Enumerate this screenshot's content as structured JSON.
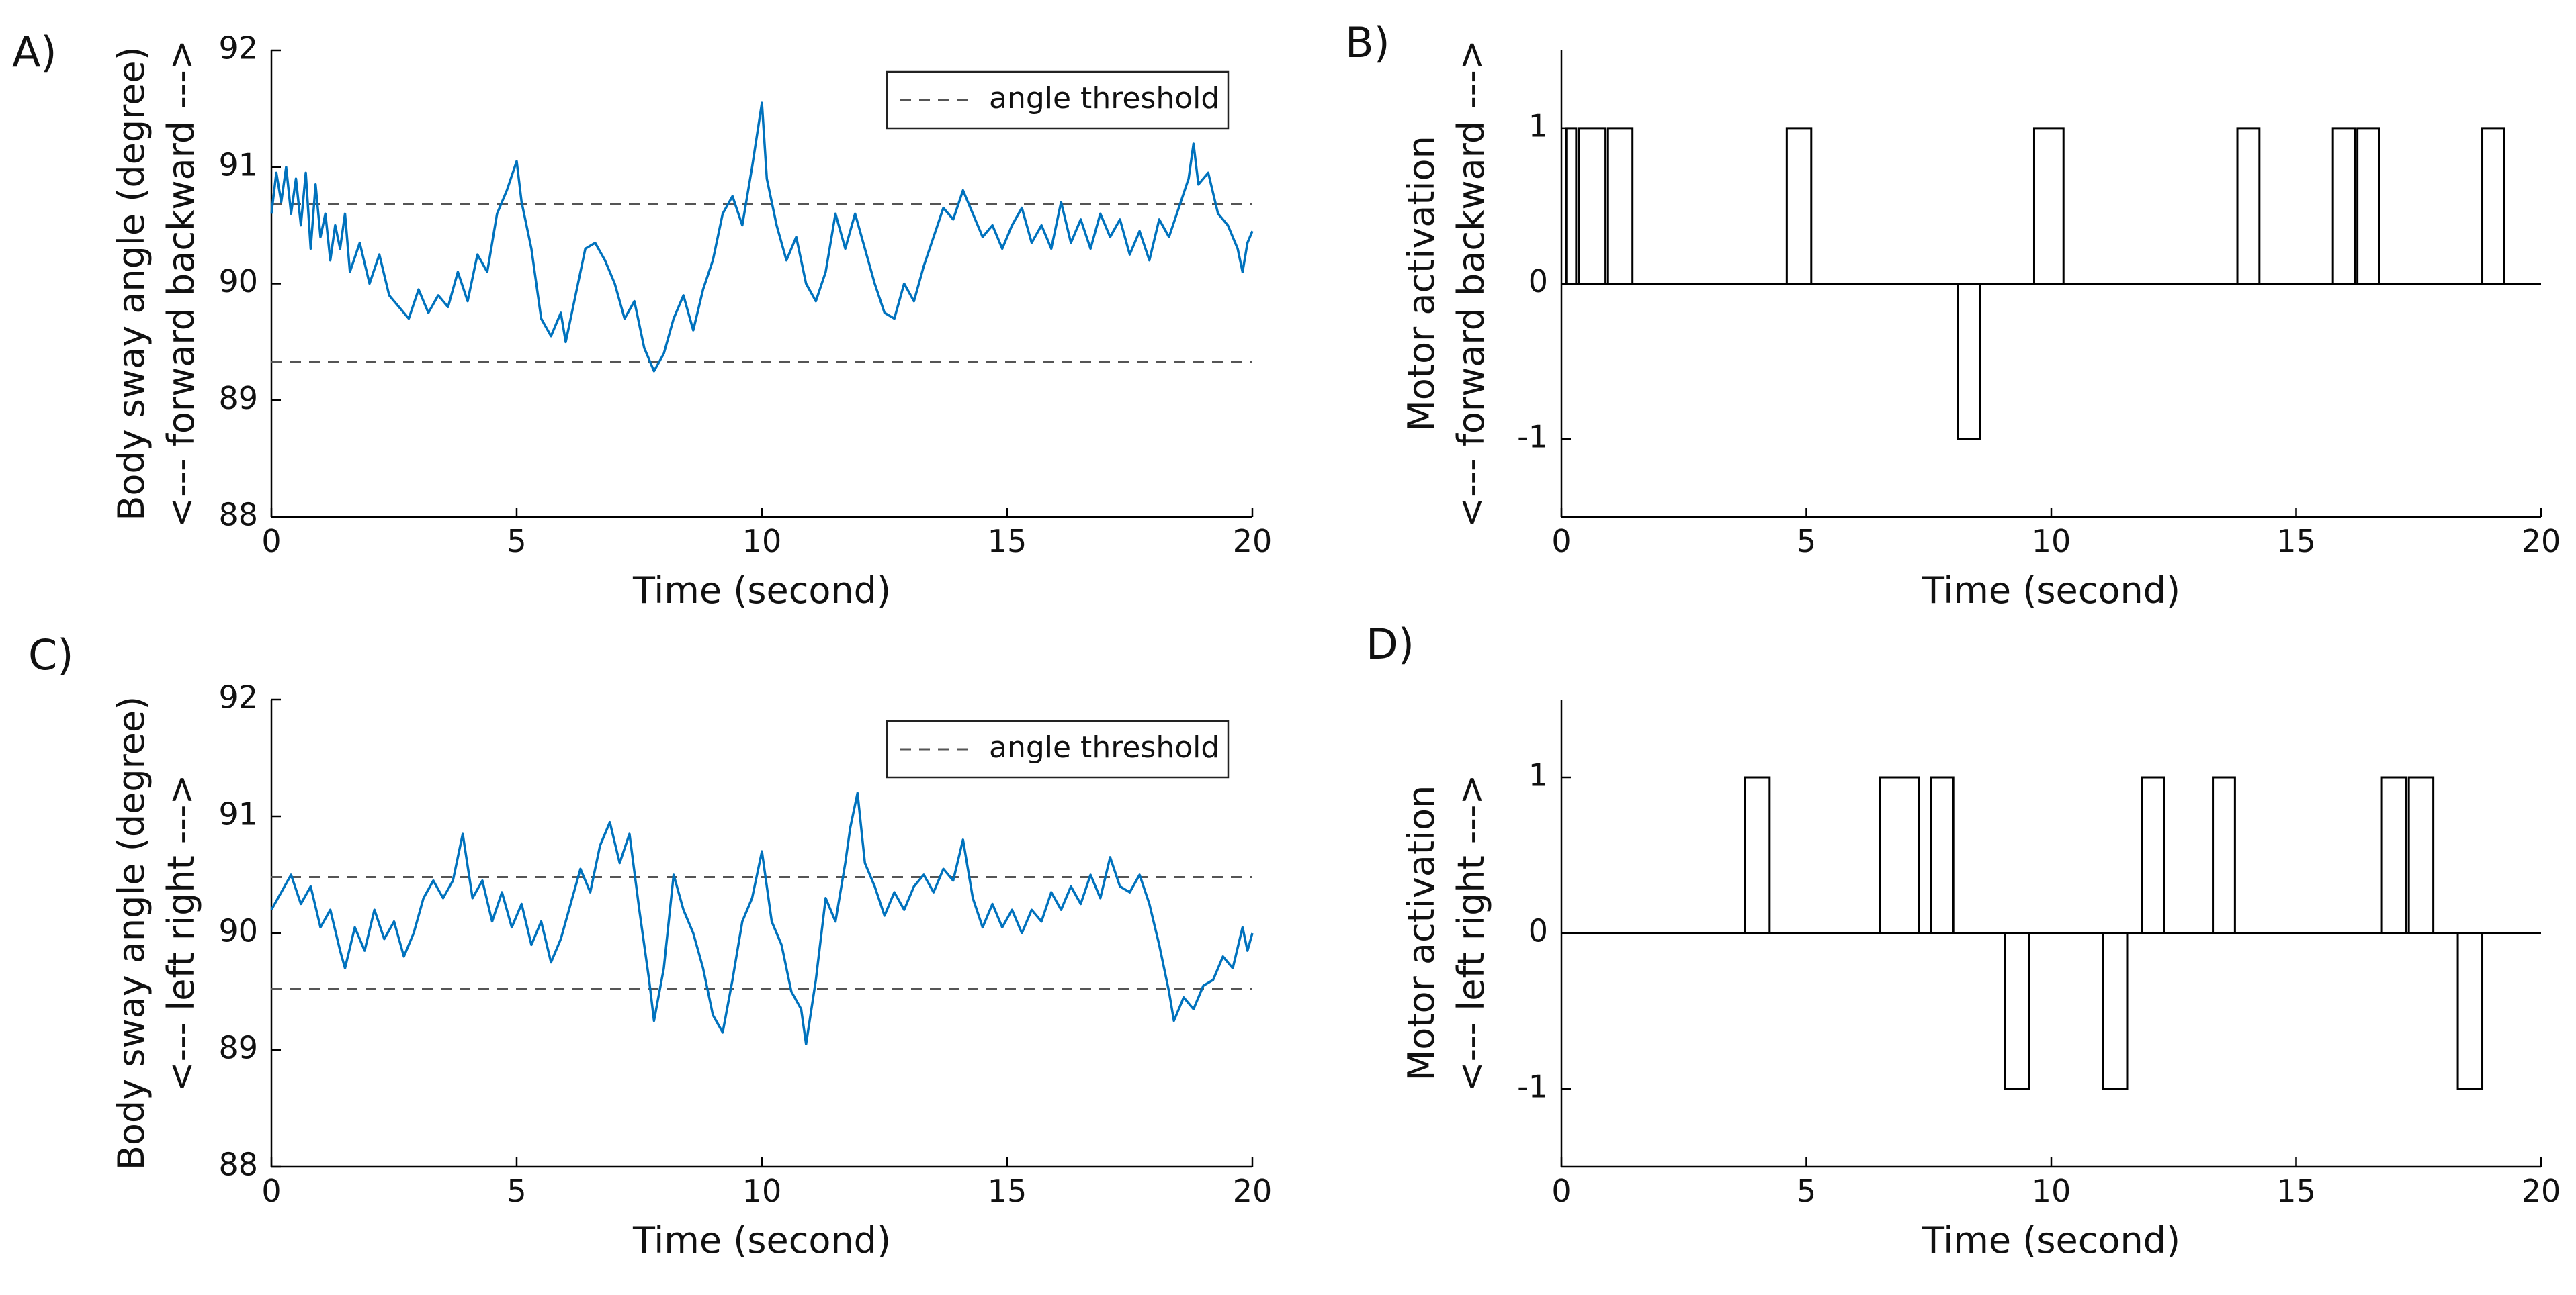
{
  "legend_label": "angle threshold",
  "colors": {
    "signal": "#0072BD",
    "threshold": "#555555",
    "axis": "#000000",
    "activation": "#000000"
  },
  "chart_data": [
    {
      "panel": "A)",
      "type": "line",
      "xlabel": "Time (second)",
      "ylabel_lines": [
        "Body sway angle (degree)",
        "<--- forward      backward --->"
      ],
      "xlim": [
        0,
        20
      ],
      "ylim": [
        88,
        92
      ],
      "xticks": [
        0,
        5,
        10,
        15,
        20
      ],
      "yticks": [
        88,
        89,
        90,
        91,
        92
      ],
      "legend": "angle threshold",
      "legend_position": "top-right",
      "thresholds": [
        90.68,
        89.33
      ],
      "series": [
        {
          "points": [
            [
              0,
              90.6
            ],
            [
              0.1,
              90.95
            ],
            [
              0.2,
              90.7
            ],
            [
              0.3,
              91.0
            ],
            [
              0.4,
              90.6
            ],
            [
              0.5,
              90.9
            ],
            [
              0.6,
              90.5
            ],
            [
              0.7,
              90.95
            ],
            [
              0.8,
              90.3
            ],
            [
              0.9,
              90.85
            ],
            [
              1.0,
              90.4
            ],
            [
              1.1,
              90.6
            ],
            [
              1.2,
              90.2
            ],
            [
              1.3,
              90.5
            ],
            [
              1.4,
              90.3
            ],
            [
              1.5,
              90.6
            ],
            [
              1.6,
              90.1
            ],
            [
              1.8,
              90.35
            ],
            [
              2.0,
              90.0
            ],
            [
              2.2,
              90.25
            ],
            [
              2.4,
              89.9
            ],
            [
              2.6,
              89.8
            ],
            [
              2.8,
              89.7
            ],
            [
              3.0,
              89.95
            ],
            [
              3.2,
              89.75
            ],
            [
              3.4,
              89.9
            ],
            [
              3.6,
              89.8
            ],
            [
              3.8,
              90.1
            ],
            [
              4.0,
              89.85
            ],
            [
              4.2,
              90.25
            ],
            [
              4.4,
              90.1
            ],
            [
              4.6,
              90.6
            ],
            [
              4.8,
              90.8
            ],
            [
              5.0,
              91.05
            ],
            [
              5.1,
              90.7
            ],
            [
              5.3,
              90.3
            ],
            [
              5.5,
              89.7
            ],
            [
              5.7,
              89.55
            ],
            [
              5.9,
              89.75
            ],
            [
              6.0,
              89.5
            ],
            [
              6.2,
              89.9
            ],
            [
              6.4,
              90.3
            ],
            [
              6.6,
              90.35
            ],
            [
              6.8,
              90.2
            ],
            [
              7.0,
              90.0
            ],
            [
              7.2,
              89.7
            ],
            [
              7.4,
              89.85
            ],
            [
              7.6,
              89.45
            ],
            [
              7.8,
              89.25
            ],
            [
              8.0,
              89.4
            ],
            [
              8.2,
              89.7
            ],
            [
              8.4,
              89.9
            ],
            [
              8.6,
              89.6
            ],
            [
              8.8,
              89.95
            ],
            [
              9.0,
              90.2
            ],
            [
              9.2,
              90.6
            ],
            [
              9.4,
              90.75
            ],
            [
              9.6,
              90.5
            ],
            [
              9.8,
              91.0
            ],
            [
              10.0,
              91.55
            ],
            [
              10.1,
              90.9
            ],
            [
              10.3,
              90.5
            ],
            [
              10.5,
              90.2
            ],
            [
              10.7,
              90.4
            ],
            [
              10.9,
              90.0
            ],
            [
              11.1,
              89.85
            ],
            [
              11.3,
              90.1
            ],
            [
              11.5,
              90.6
            ],
            [
              11.7,
              90.3
            ],
            [
              11.9,
              90.6
            ],
            [
              12.1,
              90.3
            ],
            [
              12.3,
              90.0
            ],
            [
              12.5,
              89.75
            ],
            [
              12.7,
              89.7
            ],
            [
              12.9,
              90.0
            ],
            [
              13.1,
              89.85
            ],
            [
              13.3,
              90.15
            ],
            [
              13.5,
              90.4
            ],
            [
              13.7,
              90.65
            ],
            [
              13.9,
              90.55
            ],
            [
              14.1,
              90.8
            ],
            [
              14.3,
              90.6
            ],
            [
              14.5,
              90.4
            ],
            [
              14.7,
              90.5
            ],
            [
              14.9,
              90.3
            ],
            [
              15.1,
              90.5
            ],
            [
              15.3,
              90.65
            ],
            [
              15.5,
              90.35
            ],
            [
              15.7,
              90.5
            ],
            [
              15.9,
              90.3
            ],
            [
              16.1,
              90.7
            ],
            [
              16.3,
              90.35
            ],
            [
              16.5,
              90.55
            ],
            [
              16.7,
              90.3
            ],
            [
              16.9,
              90.6
            ],
            [
              17.1,
              90.4
            ],
            [
              17.3,
              90.55
            ],
            [
              17.5,
              90.25
            ],
            [
              17.7,
              90.45
            ],
            [
              17.9,
              90.2
            ],
            [
              18.1,
              90.55
            ],
            [
              18.3,
              90.4
            ],
            [
              18.5,
              90.65
            ],
            [
              18.7,
              90.9
            ],
            [
              18.8,
              91.2
            ],
            [
              18.9,
              90.85
            ],
            [
              19.1,
              90.95
            ],
            [
              19.3,
              90.6
            ],
            [
              19.5,
              90.5
            ],
            [
              19.7,
              90.3
            ],
            [
              19.8,
              90.1
            ],
            [
              19.9,
              90.35
            ],
            [
              20.0,
              90.45
            ]
          ]
        }
      ]
    },
    {
      "panel": "B)",
      "type": "line",
      "xlabel": "Time (second)",
      "ylabel_lines": [
        "Motor activation",
        "<--- forward      backward --->"
      ],
      "xlim": [
        0,
        20
      ],
      "ylim": [
        -1.5,
        1.5
      ],
      "xticks": [
        0,
        5,
        10,
        15,
        20
      ],
      "yticks": [
        -1,
        0,
        1
      ],
      "ytick_labels": [
        "-1",
        "0",
        "1"
      ],
      "pulses": [
        [
          0.1,
          0.3,
          1
        ],
        [
          0.35,
          0.9,
          1
        ],
        [
          0.95,
          1.45,
          1
        ],
        [
          4.6,
          5.1,
          1
        ],
        [
          8.1,
          8.55,
          -1
        ],
        [
          9.65,
          10.25,
          1
        ],
        [
          13.8,
          14.25,
          1
        ],
        [
          15.75,
          16.2,
          1
        ],
        [
          16.25,
          16.7,
          1
        ],
        [
          18.8,
          19.25,
          1
        ]
      ]
    },
    {
      "panel": "C)",
      "type": "line",
      "xlabel": "Time (second)",
      "ylabel_lines": [
        "Body sway angle (degree)",
        "<--- left      right --->"
      ],
      "xlim": [
        0,
        20
      ],
      "ylim": [
        88,
        92
      ],
      "xticks": [
        0,
        5,
        10,
        15,
        20
      ],
      "yticks": [
        88,
        89,
        90,
        91,
        92
      ],
      "legend": "angle threshold",
      "legend_position": "top-right",
      "thresholds": [
        90.48,
        89.52
      ],
      "series": [
        {
          "points": [
            [
              0,
              90.2
            ],
            [
              0.2,
              90.35
            ],
            [
              0.4,
              90.5
            ],
            [
              0.6,
              90.25
            ],
            [
              0.8,
              90.4
            ],
            [
              1.0,
              90.05
            ],
            [
              1.2,
              90.2
            ],
            [
              1.4,
              89.85
            ],
            [
              1.5,
              89.7
            ],
            [
              1.7,
              90.05
            ],
            [
              1.9,
              89.85
            ],
            [
              2.1,
              90.2
            ],
            [
              2.3,
              89.95
            ],
            [
              2.5,
              90.1
            ],
            [
              2.7,
              89.8
            ],
            [
              2.9,
              90.0
            ],
            [
              3.1,
              90.3
            ],
            [
              3.3,
              90.45
            ],
            [
              3.5,
              90.3
            ],
            [
              3.7,
              90.45
            ],
            [
              3.9,
              90.85
            ],
            [
              4.1,
              90.3
            ],
            [
              4.3,
              90.45
            ],
            [
              4.5,
              90.1
            ],
            [
              4.7,
              90.35
            ],
            [
              4.9,
              90.05
            ],
            [
              5.1,
              90.25
            ],
            [
              5.3,
              89.9
            ],
            [
              5.5,
              90.1
            ],
            [
              5.7,
              89.75
            ],
            [
              5.9,
              89.95
            ],
            [
              6.1,
              90.25
            ],
            [
              6.3,
              90.55
            ],
            [
              6.5,
              90.35
            ],
            [
              6.7,
              90.75
            ],
            [
              6.9,
              90.95
            ],
            [
              7.1,
              90.6
            ],
            [
              7.3,
              90.85
            ],
            [
              7.5,
              90.2
            ],
            [
              7.7,
              89.6
            ],
            [
              7.8,
              89.25
            ],
            [
              8.0,
              89.7
            ],
            [
              8.2,
              90.5
            ],
            [
              8.4,
              90.2
            ],
            [
              8.6,
              90.0
            ],
            [
              8.8,
              89.7
            ],
            [
              9.0,
              89.3
            ],
            [
              9.2,
              89.15
            ],
            [
              9.4,
              89.6
            ],
            [
              9.6,
              90.1
            ],
            [
              9.8,
              90.3
            ],
            [
              10.0,
              90.7
            ],
            [
              10.2,
              90.1
            ],
            [
              10.4,
              89.9
            ],
            [
              10.6,
              89.5
            ],
            [
              10.8,
              89.35
            ],
            [
              10.9,
              89.05
            ],
            [
              11.1,
              89.6
            ],
            [
              11.3,
              90.3
            ],
            [
              11.5,
              90.1
            ],
            [
              11.7,
              90.6
            ],
            [
              11.8,
              90.9
            ],
            [
              11.95,
              91.2
            ],
            [
              12.1,
              90.6
            ],
            [
              12.3,
              90.4
            ],
            [
              12.5,
              90.15
            ],
            [
              12.7,
              90.35
            ],
            [
              12.9,
              90.2
            ],
            [
              13.1,
              90.4
            ],
            [
              13.3,
              90.5
            ],
            [
              13.5,
              90.35
            ],
            [
              13.7,
              90.55
            ],
            [
              13.9,
              90.45
            ],
            [
              14.1,
              90.8
            ],
            [
              14.3,
              90.3
            ],
            [
              14.5,
              90.05
            ],
            [
              14.7,
              90.25
            ],
            [
              14.9,
              90.05
            ],
            [
              15.1,
              90.2
            ],
            [
              15.3,
              90.0
            ],
            [
              15.5,
              90.2
            ],
            [
              15.7,
              90.1
            ],
            [
              15.9,
              90.35
            ],
            [
              16.1,
              90.2
            ],
            [
              16.3,
              90.4
            ],
            [
              16.5,
              90.25
            ],
            [
              16.7,
              90.5
            ],
            [
              16.9,
              90.3
            ],
            [
              17.1,
              90.65
            ],
            [
              17.3,
              90.4
            ],
            [
              17.5,
              90.35
            ],
            [
              17.7,
              90.5
            ],
            [
              17.9,
              90.25
            ],
            [
              18.1,
              89.9
            ],
            [
              18.3,
              89.5
            ],
            [
              18.4,
              89.25
            ],
            [
              18.6,
              89.45
            ],
            [
              18.8,
              89.35
            ],
            [
              19.0,
              89.55
            ],
            [
              19.2,
              89.6
            ],
            [
              19.4,
              89.8
            ],
            [
              19.6,
              89.7
            ],
            [
              19.8,
              90.05
            ],
            [
              19.9,
              89.85
            ],
            [
              20.0,
              90.0
            ]
          ]
        }
      ]
    },
    {
      "panel": "D)",
      "type": "line",
      "xlabel": "Time (second)",
      "ylabel_lines": [
        "Motor activation",
        "<--- left      right --->"
      ],
      "xlim": [
        0,
        20
      ],
      "ylim": [
        -1.5,
        1.5
      ],
      "xticks": [
        0,
        5,
        10,
        15,
        20
      ],
      "yticks": [
        -1,
        0,
        1
      ],
      "ytick_labels": [
        "-1",
        "0",
        "1"
      ],
      "pulses": [
        [
          3.75,
          4.25,
          1
        ],
        [
          6.5,
          7.3,
          1
        ],
        [
          7.55,
          8.0,
          1
        ],
        [
          9.05,
          9.55,
          -1
        ],
        [
          11.05,
          11.55,
          -1
        ],
        [
          11.85,
          12.3,
          1
        ],
        [
          13.3,
          13.75,
          1
        ],
        [
          16.75,
          17.25,
          1
        ],
        [
          17.3,
          17.8,
          1
        ],
        [
          18.3,
          18.8,
          -1
        ]
      ]
    }
  ]
}
